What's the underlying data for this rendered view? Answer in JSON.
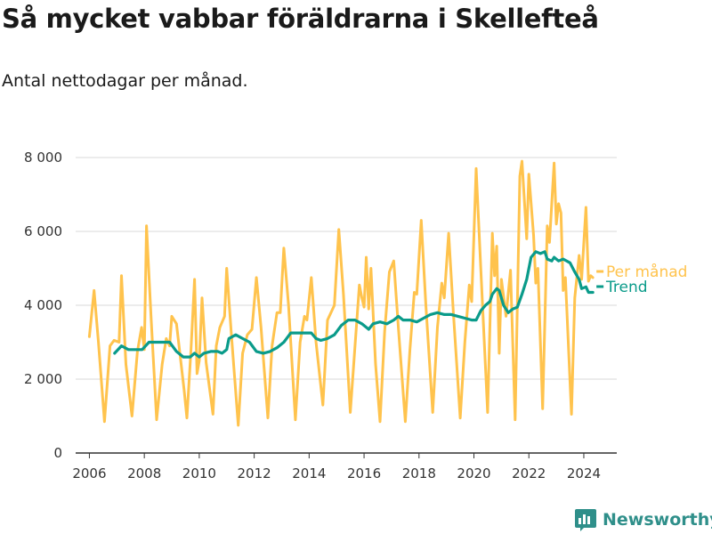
{
  "title": "Så mycket vabbar föräldrarna i Skellefteå",
  "subtitle": "Antal nettodagar per månad.",
  "brand": "Newsworthy",
  "colors": {
    "per_manad": "#ffc34d",
    "trend": "#0a9b8a",
    "brand": "#2f8f8a",
    "grid": "#d9d9d9",
    "axis": "#333333"
  },
  "chart_data": {
    "type": "line",
    "xlim": [
      2005.5,
      2025.2
    ],
    "ylim": [
      0,
      8000
    ],
    "yticks": [
      0,
      2000,
      4000,
      6000,
      8000
    ],
    "ytick_labels": [
      "0",
      "2 000",
      "4 000",
      "6 000",
      "8 000"
    ],
    "xticks": [
      2006,
      2008,
      2010,
      2012,
      2014,
      2016,
      2018,
      2020,
      2022,
      2024
    ],
    "xtick_labels": [
      "2006",
      "2008",
      "2010",
      "2012",
      "2014",
      "2016",
      "2018",
      "2020",
      "2022",
      "2024"
    ],
    "grid": true,
    "legend": "right",
    "series": [
      {
        "name": "Per månad",
        "color": "#ffc34d",
        "points": [
          [
            2006.0,
            3150
          ],
          [
            2006.17,
            4400
          ],
          [
            2006.33,
            3000
          ],
          [
            2006.55,
            850
          ],
          [
            2006.75,
            2900
          ],
          [
            2006.9,
            3050
          ],
          [
            2007.08,
            3000
          ],
          [
            2007.17,
            4800
          ],
          [
            2007.33,
            2400
          ],
          [
            2007.55,
            1000
          ],
          [
            2007.75,
            2750
          ],
          [
            2007.9,
            3400
          ],
          [
            2008.0,
            2800
          ],
          [
            2008.08,
            6150
          ],
          [
            2008.25,
            3600
          ],
          [
            2008.45,
            900
          ],
          [
            2008.65,
            2400
          ],
          [
            2008.8,
            3100
          ],
          [
            2008.92,
            2900
          ],
          [
            2009.0,
            3700
          ],
          [
            2009.17,
            3500
          ],
          [
            2009.45,
            1700
          ],
          [
            2009.55,
            950
          ],
          [
            2009.7,
            2800
          ],
          [
            2009.83,
            4700
          ],
          [
            2009.92,
            2150
          ],
          [
            2010.0,
            2500
          ],
          [
            2010.1,
            4200
          ],
          [
            2010.25,
            2450
          ],
          [
            2010.5,
            1050
          ],
          [
            2010.62,
            2900
          ],
          [
            2010.75,
            3400
          ],
          [
            2010.92,
            3700
          ],
          [
            2011.0,
            5000
          ],
          [
            2011.17,
            3200
          ],
          [
            2011.42,
            750
          ],
          [
            2011.58,
            2700
          ],
          [
            2011.75,
            3200
          ],
          [
            2011.92,
            3350
          ],
          [
            2012.08,
            4750
          ],
          [
            2012.25,
            3400
          ],
          [
            2012.5,
            950
          ],
          [
            2012.65,
            2900
          ],
          [
            2012.83,
            3800
          ],
          [
            2012.95,
            3800
          ],
          [
            2013.08,
            5550
          ],
          [
            2013.25,
            4000
          ],
          [
            2013.5,
            900
          ],
          [
            2013.67,
            3000
          ],
          [
            2013.83,
            3700
          ],
          [
            2013.92,
            3600
          ],
          [
            2014.08,
            4750
          ],
          [
            2014.25,
            3000
          ],
          [
            2014.5,
            1300
          ],
          [
            2014.67,
            3600
          ],
          [
            2014.92,
            4000
          ],
          [
            2015.08,
            6050
          ],
          [
            2015.25,
            4300
          ],
          [
            2015.5,
            1100
          ],
          [
            2015.67,
            2900
          ],
          [
            2015.83,
            4550
          ],
          [
            2015.92,
            4200
          ],
          [
            2016.0,
            3950
          ],
          [
            2016.08,
            5300
          ],
          [
            2016.17,
            3900
          ],
          [
            2016.25,
            5000
          ],
          [
            2016.42,
            2400
          ],
          [
            2016.58,
            850
          ],
          [
            2016.75,
            3300
          ],
          [
            2016.92,
            4900
          ],
          [
            2017.08,
            5200
          ],
          [
            2017.25,
            3400
          ],
          [
            2017.5,
            850
          ],
          [
            2017.67,
            2800
          ],
          [
            2017.83,
            4350
          ],
          [
            2017.92,
            4300
          ],
          [
            2018.08,
            6300
          ],
          [
            2018.25,
            4000
          ],
          [
            2018.5,
            1100
          ],
          [
            2018.67,
            3400
          ],
          [
            2018.83,
            4600
          ],
          [
            2018.92,
            4200
          ],
          [
            2019.08,
            5950
          ],
          [
            2019.25,
            3800
          ],
          [
            2019.5,
            950
          ],
          [
            2019.67,
            3000
          ],
          [
            2019.83,
            4550
          ],
          [
            2019.92,
            4100
          ],
          [
            2020.08,
            7700
          ],
          [
            2020.25,
            5000
          ],
          [
            2020.5,
            1100
          ],
          [
            2020.67,
            5950
          ],
          [
            2020.75,
            4800
          ],
          [
            2020.83,
            5600
          ],
          [
            2020.92,
            2700
          ],
          [
            2021.0,
            4700
          ],
          [
            2021.17,
            3700
          ],
          [
            2021.33,
            4950
          ],
          [
            2021.5,
            900
          ],
          [
            2021.67,
            7500
          ],
          [
            2021.75,
            7900
          ],
          [
            2021.92,
            5800
          ],
          [
            2022.0,
            7550
          ],
          [
            2022.17,
            5900
          ],
          [
            2022.25,
            4600
          ],
          [
            2022.33,
            5000
          ],
          [
            2022.5,
            1200
          ],
          [
            2022.67,
            6150
          ],
          [
            2022.75,
            5700
          ],
          [
            2022.92,
            7850
          ],
          [
            2023.0,
            6200
          ],
          [
            2023.08,
            6750
          ],
          [
            2023.17,
            6500
          ],
          [
            2023.25,
            4400
          ],
          [
            2023.33,
            4750
          ],
          [
            2023.55,
            1050
          ],
          [
            2023.67,
            4200
          ],
          [
            2023.83,
            5350
          ],
          [
            2023.92,
            4700
          ],
          [
            2024.08,
            6650
          ],
          [
            2024.17,
            4650
          ],
          [
            2024.25,
            4800
          ],
          [
            2024.33,
            4750
          ]
        ]
      },
      {
        "name": "Trend",
        "color": "#0a9b8a",
        "points": [
          [
            2006.92,
            2700
          ],
          [
            2007.17,
            2900
          ],
          [
            2007.42,
            2800
          ],
          [
            2007.67,
            2800
          ],
          [
            2007.92,
            2800
          ],
          [
            2008.17,
            3000
          ],
          [
            2008.42,
            3000
          ],
          [
            2008.67,
            3000
          ],
          [
            2008.92,
            3000
          ],
          [
            2009.17,
            2750
          ],
          [
            2009.42,
            2600
          ],
          [
            2009.67,
            2600
          ],
          [
            2009.83,
            2700
          ],
          [
            2010.0,
            2600
          ],
          [
            2010.17,
            2700
          ],
          [
            2010.42,
            2750
          ],
          [
            2010.67,
            2750
          ],
          [
            2010.83,
            2700
          ],
          [
            2011.0,
            2800
          ],
          [
            2011.08,
            3100
          ],
          [
            2011.33,
            3200
          ],
          [
            2011.58,
            3100
          ],
          [
            2011.83,
            3000
          ],
          [
            2012.08,
            2750
          ],
          [
            2012.33,
            2700
          ],
          [
            2012.58,
            2750
          ],
          [
            2012.83,
            2850
          ],
          [
            2013.08,
            3000
          ],
          [
            2013.33,
            3250
          ],
          [
            2013.58,
            3250
          ],
          [
            2013.83,
            3250
          ],
          [
            2014.08,
            3250
          ],
          [
            2014.25,
            3100
          ],
          [
            2014.42,
            3050
          ],
          [
            2014.67,
            3100
          ],
          [
            2014.92,
            3200
          ],
          [
            2015.17,
            3450
          ],
          [
            2015.42,
            3600
          ],
          [
            2015.67,
            3600
          ],
          [
            2015.92,
            3500
          ],
          [
            2016.17,
            3350
          ],
          [
            2016.33,
            3500
          ],
          [
            2016.58,
            3550
          ],
          [
            2016.83,
            3500
          ],
          [
            2017.08,
            3600
          ],
          [
            2017.25,
            3700
          ],
          [
            2017.42,
            3600
          ],
          [
            2017.67,
            3600
          ],
          [
            2017.92,
            3550
          ],
          [
            2018.17,
            3650
          ],
          [
            2018.42,
            3750
          ],
          [
            2018.67,
            3800
          ],
          [
            2018.92,
            3750
          ],
          [
            2019.17,
            3750
          ],
          [
            2019.42,
            3700
          ],
          [
            2019.67,
            3650
          ],
          [
            2019.92,
            3600
          ],
          [
            2020.08,
            3600
          ],
          [
            2020.25,
            3850
          ],
          [
            2020.42,
            4000
          ],
          [
            2020.58,
            4100
          ],
          [
            2020.67,
            4300
          ],
          [
            2020.83,
            4450
          ],
          [
            2020.92,
            4400
          ],
          [
            2021.08,
            4000
          ],
          [
            2021.25,
            3800
          ],
          [
            2021.42,
            3900
          ],
          [
            2021.58,
            3950
          ],
          [
            2021.75,
            4300
          ],
          [
            2021.92,
            4700
          ],
          [
            2022.08,
            5300
          ],
          [
            2022.25,
            5450
          ],
          [
            2022.42,
            5400
          ],
          [
            2022.58,
            5450
          ],
          [
            2022.67,
            5250
          ],
          [
            2022.83,
            5200
          ],
          [
            2022.92,
            5300
          ],
          [
            2023.08,
            5200
          ],
          [
            2023.25,
            5250
          ],
          [
            2023.5,
            5150
          ],
          [
            2023.67,
            4900
          ],
          [
            2023.83,
            4700
          ],
          [
            2023.92,
            4450
          ],
          [
            2024.08,
            4500
          ],
          [
            2024.17,
            4350
          ],
          [
            2024.33,
            4350
          ]
        ]
      }
    ]
  }
}
